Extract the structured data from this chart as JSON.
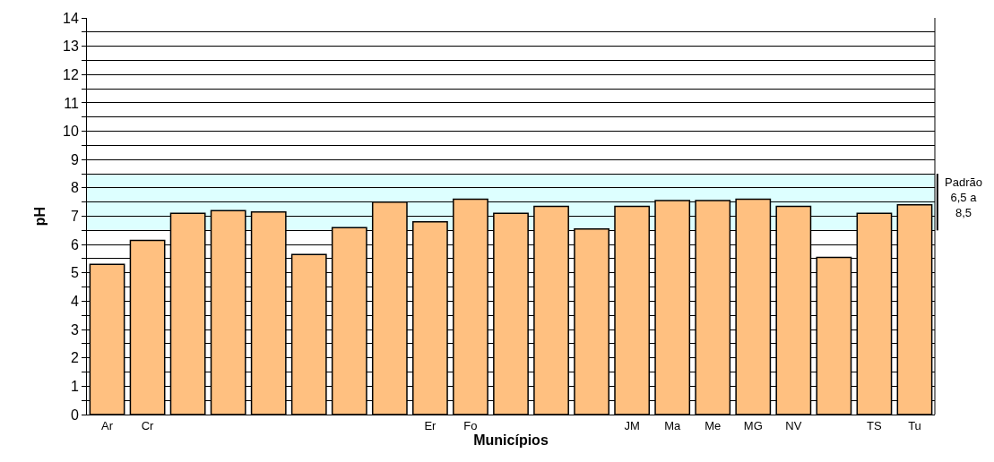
{
  "chart_data": {
    "type": "bar",
    "xlabel": "Municípios",
    "ylabel": "pH",
    "categories": [
      "Ar",
      "Cr",
      null,
      null,
      null,
      null,
      null,
      null,
      "Er",
      "Fo",
      null,
      null,
      null,
      "JM",
      "Ma",
      "Me",
      "MG",
      "NV",
      null,
      "TS",
      "Tu"
    ],
    "values": [
      5.3,
      6.15,
      7.1,
      7.2,
      7.15,
      5.65,
      6.6,
      7.5,
      6.8,
      7.6,
      7.1,
      7.35,
      6.55,
      7.35,
      7.55,
      7.55,
      7.6,
      7.35,
      5.55,
      7.1,
      7.4
    ],
    "color": "#ffc080",
    "ylim": [
      0,
      14
    ],
    "yticks": [
      0,
      {
        "value": 0.5,
        "label": null
      },
      1,
      {
        "value": 1.5,
        "label": null
      },
      2,
      {
        "value": 2.5,
        "label": null
      },
      3,
      {
        "value": 3.5,
        "label": null
      },
      4,
      {
        "value": 4.5,
        "label": null
      },
      5,
      {
        "value": 5.5,
        "label": null
      },
      6,
      {
        "value": 6.5,
        "label": null
      },
      7,
      {
        "value": 7.5,
        "label": null
      },
      8,
      {
        "value": 8.5,
        "label": null
      },
      9,
      {
        "value": 9.5,
        "label": null
      },
      10,
      {
        "value": 10.5,
        "label": null
      },
      11,
      {
        "value": 11.5,
        "label": null
      },
      12,
      {
        "value": 12.5,
        "label": null
      },
      13,
      {
        "value": 13.5,
        "label": null
      },
      14
    ],
    "bands": [
      {
        "axis": "y",
        "from": 6.5,
        "to": 8.5,
        "label": "Padrão\n6,5 a\n8,5",
        "color": "#ddffff"
      }
    ],
    "grid": "y",
    "legend": false
  }
}
